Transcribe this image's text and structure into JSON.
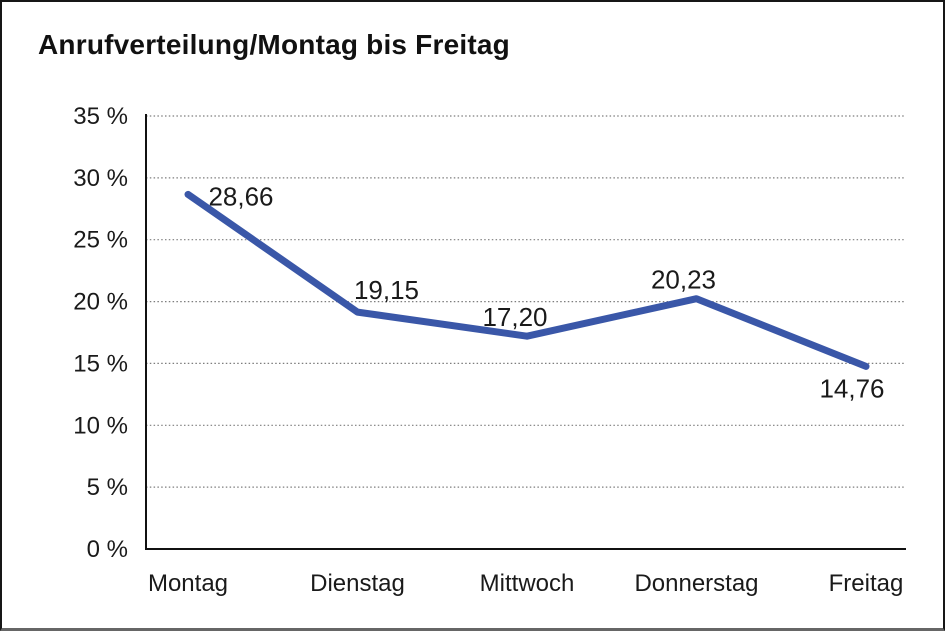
{
  "title": "Anrufverteilung/Montag bis Freitag",
  "chart_data": {
    "type": "line",
    "title": "Anrufverteilung/Montag bis Freitag",
    "categories": [
      "Montag",
      "Dienstag",
      "Mittwoch",
      "Donnerstag",
      "Freitag"
    ],
    "values": [
      28.66,
      19.15,
      17.2,
      20.23,
      14.76
    ],
    "value_labels": [
      "28,66",
      "19,15",
      "17,20",
      "20,23",
      "14,76"
    ],
    "xlabel": "",
    "ylabel": "",
    "ylim": [
      0,
      35
    ],
    "ytick_step": 5,
    "ytick_labels": [
      "0 %",
      "5 %",
      "10 %",
      "15 %",
      "20 %",
      "25 %",
      "30 %",
      "35 %"
    ],
    "grid": "horizontal-dotted",
    "legend": "none",
    "series": [
      {
        "name": "Anrufverteilung",
        "values": [
          28.66,
          19.15,
          17.2,
          20.23,
          14.76
        ]
      }
    ]
  },
  "colors": {
    "line": "#3A57A8",
    "grid": "#7d7d7d",
    "axis": "#111111",
    "text": "#1a1a1a",
    "background": "#ffffff",
    "border": "#161616",
    "border_bottom": "#666666"
  }
}
